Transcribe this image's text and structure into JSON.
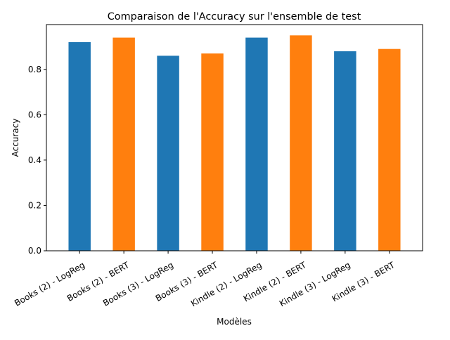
{
  "chart_data": {
    "type": "bar",
    "title": "Comparaison de l'Accuracy sur l'ensemble de test",
    "xlabel": "Modèles",
    "ylabel": "Accuracy",
    "categories": [
      "Books (2) - LogReg",
      "Books (2) - BERT",
      "Books (3) - LogReg",
      "Books (3) - BERT",
      "Kindle (2) - LogReg",
      "Kindle (2) - BERT",
      "Kindle (3) - LogReg",
      "Kindle (3) - BERT"
    ],
    "values": [
      0.92,
      0.94,
      0.86,
      0.87,
      0.94,
      0.95,
      0.88,
      0.89
    ],
    "bar_colors": [
      "#1f77b4",
      "#ff7f0e",
      "#1f77b4",
      "#ff7f0e",
      "#1f77b4",
      "#ff7f0e",
      "#1f77b4",
      "#ff7f0e"
    ],
    "ylim": [
      0,
      0.9975
    ],
    "yticks": [
      "0.0",
      "0.2",
      "0.4",
      "0.6",
      "0.8"
    ],
    "grid": false,
    "legend": "none"
  }
}
